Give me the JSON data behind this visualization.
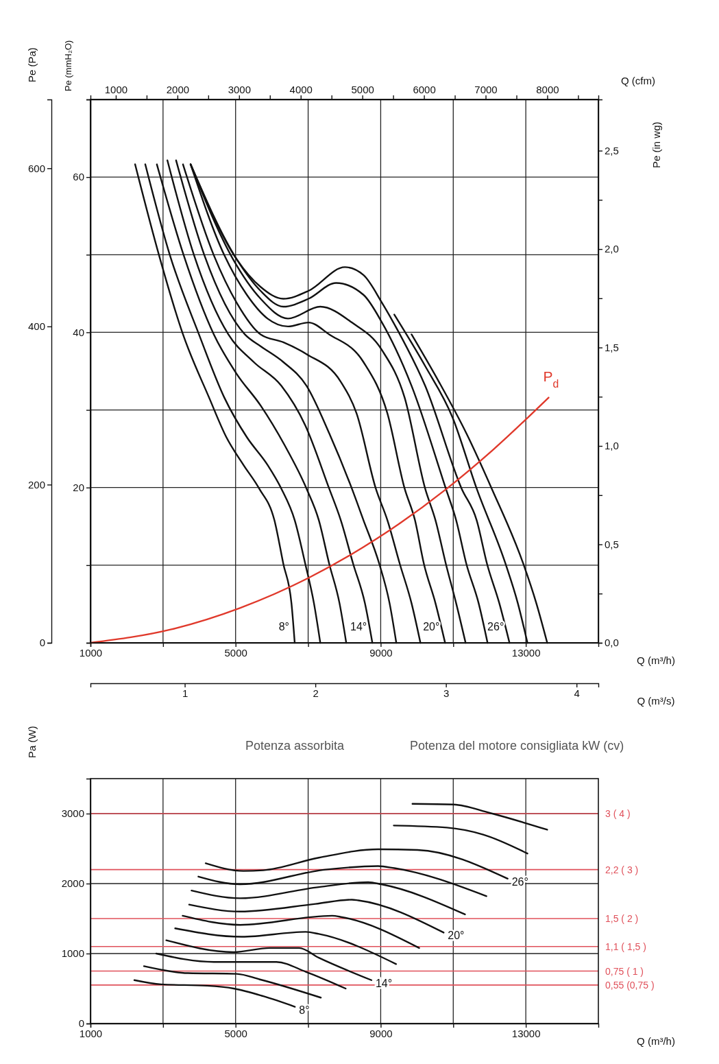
{
  "chart_data": [
    {
      "type": "line",
      "xlabel": "Q (m³/h)",
      "ylabel": "Pe (Pa)",
      "y2label": "Pe (mmH₂O)",
      "y3label": "Pe (in wg)",
      "x2label": "Q (cfm)",
      "xlim": [
        1000,
        15000
      ],
      "xticks": [
        1000,
        {
          "value": 3000,
          "label": null
        },
        5000,
        {
          "value": 7000,
          "label": null
        },
        9000,
        {
          "value": 11000,
          "label": null
        },
        13000
      ],
      "ylim": [
        0,
        687
      ],
      "yticks": [
        0,
        200,
        400,
        600
      ],
      "y2lim": [
        0,
        70
      ],
      "y2ticks": [
        {
          "value": 10,
          "label": null
        },
        20,
        {
          "value": 30,
          "label": null
        },
        40,
        {
          "value": 50,
          "label": null
        },
        60
      ],
      "y3lim": [
        0,
        2.76
      ],
      "y3ticks": [
        {
          "value": 0,
          "label": "0,0"
        },
        {
          "value": 0.25,
          "label": null
        },
        {
          "value": 0.5,
          "label": "0,5"
        },
        {
          "value": 0.75,
          "label": null
        },
        {
          "value": 1,
          "label": "1,0"
        },
        {
          "value": 1.25,
          "label": null
        },
        {
          "value": 1.5,
          "label": "1,5"
        },
        {
          "value": 1.75,
          "label": null
        },
        {
          "value": 2,
          "label": "2,0"
        },
        {
          "value": 2.25,
          "label": null
        },
        {
          "value": 2.5,
          "label": "2,5"
        }
      ],
      "x2lim": [
        589,
        8829
      ],
      "x2ticks": [
        1000,
        {
          "value": 1500,
          "label": null
        },
        2000,
        {
          "value": 2500,
          "label": null
        },
        3000,
        {
          "value": 3500,
          "label": null
        },
        4000,
        {
          "value": 4500,
          "label": null
        },
        5000,
        {
          "value": 5500,
          "label": null
        },
        6000,
        {
          "value": 6500,
          "label": null
        },
        7000,
        {
          "value": 7500,
          "label": null
        },
        8000,
        {
          "value": 8500,
          "label": null
        }
      ],
      "grid": true,
      "annotations": [
        {
          "text": "8°",
          "x": 6630,
          "y": 0
        },
        {
          "text": "14°",
          "x": 8770,
          "y": 0
        },
        {
          "text": "20°",
          "x": 10775,
          "y": 0
        },
        {
          "text": "26°",
          "x": 12550,
          "y": 0
        }
      ],
      "series": [
        {
          "color": "#111111",
          "x": [
            2230,
            2890,
            3550,
            4270,
            4745,
            5215,
            5650,
            6070,
            6315,
            6540,
            6630
          ],
          "values": [
            605,
            490,
            390,
            310,
            260,
            225,
            195,
            155,
            100,
            50,
            0
          ]
        },
        {
          "color": "#111111",
          "x": [
            2510,
            3190,
            3990,
            4690,
            5310,
            5880,
            6260,
            6630,
            6920,
            7160,
            7335
          ],
          "values": [
            605,
            490,
            390,
            310,
            260,
            225,
            195,
            155,
            100,
            50,
            0
          ]
        },
        {
          "color": "#111111",
          "x": [
            2830,
            3570,
            4400,
            5030,
            5690,
            6350,
            6955,
            7295,
            7580,
            7865,
            8050
          ],
          "values": [
            605,
            490,
            390,
            340,
            300,
            250,
            195,
            155,
            100,
            50,
            0
          ]
        },
        {
          "color": "#111111",
          "x": [
            3120,
            3855,
            4800,
            5500,
            6260,
            6920,
            7580,
            7900,
            8240,
            8565,
            8770
          ],
          "values": [
            610,
            490,
            390,
            355,
            325,
            275,
            195,
            155,
            100,
            50,
            0
          ]
        },
        {
          "color": "#111111",
          "x": [
            3360,
            4140,
            5255,
            5690,
            6315,
            6955,
            7580,
            8205,
            8525,
            8960,
            9245,
            9430
          ],
          "values": [
            610,
            490,
            390,
            375,
            355,
            325,
            265,
            195,
            155,
            100,
            50,
            0
          ]
        },
        {
          "color": "#111111",
          "x": [
            3550,
            4400,
            5030,
            5690,
            6315,
            6955,
            7900,
            8335,
            8865,
            9185,
            9525,
            9850,
            10095
          ],
          "values": [
            605,
            490,
            430,
            390,
            380,
            365,
            330,
            290,
            195,
            155,
            100,
            50,
            0
          ]
        },
        {
          "color": "#111111",
          "x": [
            3760,
            4690,
            5310,
            5880,
            6445,
            7010,
            7580,
            8525,
            9185,
            9660,
            9945,
            10190,
            10510,
            10775
          ],
          "values": [
            605,
            490,
            440,
            410,
            400,
            405,
            390,
            355,
            290,
            195,
            155,
            100,
            50,
            0
          ]
        },
        {
          "color": "#111111",
          "x": [
            3760,
            4930,
            5690,
            6445,
            7335,
            8205,
            9035,
            9660,
            10225,
            10510,
            10795,
            11080,
            11340
          ],
          "values": [
            605,
            485,
            435,
            410,
            425,
            405,
            370,
            310,
            195,
            155,
            100,
            50,
            0
          ]
        },
        {
          "color": "#111111",
          "x": [
            3760,
            5030,
            5690,
            6315,
            7010,
            7770,
            8525,
            9035,
            9850,
            10795,
            11080,
            11360,
            11700,
            11945
          ],
          "values": [
            605,
            485,
            445,
            425,
            435,
            455,
            440,
            405,
            325,
            195,
            155,
            100,
            50,
            0
          ]
        },
        {
          "color": "#111111",
          "x": [
            3760,
            5030,
            5690,
            6315,
            7010,
            8015,
            8525,
            9035,
            9470,
            10225,
            11230,
            11645,
            11930,
            12270,
            12550
          ],
          "values": [
            605,
            485,
            450,
            435,
            445,
            475,
            465,
            430,
            395,
            325,
            195,
            155,
            100,
            50,
            0
          ]
        },
        {
          "color": "#111111",
          "x": [
            9375,
            10225,
            10980,
            11645,
            12440,
            12780,
            13045
          ],
          "values": [
            415,
            350,
            285,
            195,
            100,
            50,
            0
          ]
        },
        {
          "color": "#111111",
          "x": [
            9850,
            10605,
            11360,
            12060,
            12930,
            13290,
            13590
          ],
          "values": [
            390,
            330,
            265,
            195,
            100,
            50,
            0
          ]
        }
      ]
    },
    {
      "type": "line",
      "xlabel": "Q (m³/s)",
      "xlim": [
        0.278,
        4.167
      ],
      "xticks": [
        1,
        2,
        3,
        4
      ],
      "ylim": [
        0,
        687
      ],
      "tick_labels": "x",
      "series": [
        {
          "name": "P$_{d}$",
          "color": "#e0392b",
          "x": [
            0.278,
            0.897,
            1.422,
            1.947,
            2.474,
            2.999,
            3.367,
            3.786
          ],
          "values": [
            0,
            17,
            44,
            82,
            132,
            194,
            245,
            310
          ]
        }
      ]
    },
    {
      "type": "line",
      "title": "Potenza assorbita",
      "subtitle": "Potenza del motore consigliata kW (cv)",
      "xlabel": "Q (m³/h)",
      "ylabel": "Pa (W)",
      "xlim": [
        1000,
        15000
      ],
      "xticks": [
        1000,
        {
          "value": 3000,
          "label": null
        },
        5000,
        {
          "value": 7000,
          "label": null
        },
        9000,
        {
          "value": 11000,
          "label": null
        },
        13000
      ],
      "ylim": [
        0,
        3500
      ],
      "yticks": [
        0,
        1000,
        2000,
        3000
      ],
      "grid": true,
      "ref_lines": [
        {
          "axis": "y",
          "value": 3000,
          "color": "#e0505a"
        },
        {
          "axis": "y",
          "value": 2200,
          "color": "#e0505a"
        },
        {
          "axis": "y",
          "value": 1500,
          "color": "#e0505a"
        },
        {
          "axis": "y",
          "value": 1100,
          "color": "#e0505a"
        },
        {
          "axis": "y",
          "value": 750,
          "color": "#e0505a"
        },
        {
          "axis": "y",
          "value": 550,
          "color": "#e0505a"
        }
      ],
      "annotations": [
        {
          "text": "8°",
          "x": 6635,
          "y": 240
        },
        {
          "text": "14°",
          "x": 8745,
          "y": 620
        },
        {
          "text": "20°",
          "x": 10735,
          "y": 1300
        },
        {
          "text": "26°",
          "x": 12500,
          "y": 2070
        },
        {
          "text": "3 ( 4 )",
          "x": 15000,
          "y": 3000
        },
        {
          "text": "2,2 ( 3 )",
          "x": 15000,
          "y": 2200
        },
        {
          "text": "1,5 ( 2 )",
          "x": 15000,
          "y": 1500
        },
        {
          "text": "1,1 ( 1,5 )",
          "x": 15000,
          "y": 1100
        },
        {
          "text": "0,75 ( 1 )",
          "x": 15000,
          "y": 750
        },
        {
          "text": "0,55 (0,75 )",
          "x": 15000,
          "y": 550
        }
      ],
      "series": [
        {
          "color": "#111111",
          "x": [
            2210,
            2950,
            4215,
            4950,
            5765,
            6635
          ],
          "values": [
            620,
            560,
            540,
            500,
            390,
            240
          ]
        },
        {
          "color": "#111111",
          "x": [
            2475,
            3685,
            5030,
            5670,
            7350
          ],
          "values": [
            820,
            720,
            710,
            630,
            370
          ]
        },
        {
          "color": "#111111",
          "x": [
            2815,
            4400,
            5030,
            6125,
            6935,
            8035
          ],
          "values": [
            1000,
            880,
            880,
            880,
            740,
            500
          ]
        },
        {
          "color": "#111111",
          "x": [
            3090,
            4945,
            5940,
            6750,
            7295,
            8745
          ],
          "values": [
            1190,
            1020,
            1080,
            1080,
            940,
            620
          ]
        },
        {
          "color": "#111111",
          "x": [
            3335,
            5170,
            6935,
            7295,
            9425
          ],
          "values": [
            1360,
            1240,
            1310,
            1280,
            850
          ]
        },
        {
          "color": "#111111",
          "x": [
            3540,
            5125,
            7660,
            7930,
            10060
          ],
          "values": [
            1540,
            1410,
            1540,
            1520,
            1080
          ]
        },
        {
          "color": "#111111",
          "x": [
            3720,
            5125,
            7205,
            8205,
            8385,
            10735
          ],
          "values": [
            1700,
            1600,
            1710,
            1770,
            1760,
            1300
          ]
        },
        {
          "color": "#111111",
          "x": [
            3785,
            5125,
            7295,
            8655,
            9015,
            11325
          ],
          "values": [
            1900,
            1790,
            1950,
            2020,
            1990,
            1560
          ]
        },
        {
          "color": "#111111",
          "x": [
            3975,
            5125,
            7480,
            8925,
            9380,
            11915
          ],
          "values": [
            2100,
            1990,
            2200,
            2250,
            2220,
            1820
          ]
        },
        {
          "color": "#111111",
          "x": [
            4175,
            5215,
            5760,
            7295,
            8925,
            10015,
            12500
          ],
          "values": [
            2290,
            2180,
            2190,
            2370,
            2490,
            2480,
            2070
          ]
        },
        {
          "color": "#111111",
          "x": [
            9360,
            10825,
            11825,
            13045
          ],
          "values": [
            2830,
            2800,
            2700,
            2430
          ]
        },
        {
          "color": "#111111",
          "x": [
            9875,
            11010,
            12005,
            13590
          ],
          "values": [
            3140,
            3130,
            3010,
            2770
          ]
        }
      ]
    }
  ]
}
